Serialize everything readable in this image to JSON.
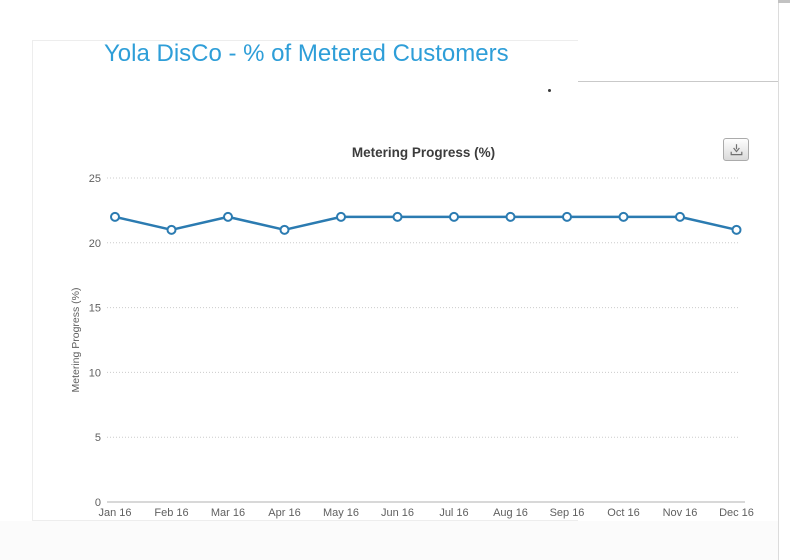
{
  "page": {
    "title": "Yola DisCo - % of Metered Customers",
    "stray_mark": "."
  },
  "colors": {
    "page_title": "#2e9ed8",
    "series_line": "#2b7bb1",
    "marker_fill": "#ffffff",
    "chart_title": "#3c3c3c",
    "axis_text": "#606060",
    "gridline": "#cccccc",
    "axis_line": "#b0b0b0",
    "card_border": "#ededed",
    "panel_border": "#c9c9c9",
    "export_icon": "#707070"
  },
  "export_button": {
    "icon": "download-icon"
  },
  "chart_data": {
    "type": "line",
    "title": "Metering Progress (%)",
    "xlabel": "",
    "ylabel": "Metering Progress (%)",
    "categories": [
      "Jan 16",
      "Feb 16",
      "Mar 16",
      "Apr 16",
      "May 16",
      "Jun 16",
      "Jul 16",
      "Aug 16",
      "Sep 16",
      "Oct 16",
      "Nov 16",
      "Dec 16"
    ],
    "series": [
      {
        "name": "Metering Progress (%)",
        "values": [
          22,
          21,
          22,
          21,
          22,
          22,
          22,
          22,
          22,
          22,
          22,
          21
        ]
      }
    ],
    "ylim": [
      0,
      25
    ],
    "yticks": [
      0,
      5,
      10,
      15,
      20,
      25
    ],
    "ytick_interval": 5,
    "grid": "horizontal-dotted",
    "legend": "none",
    "marker": "open-circle"
  }
}
